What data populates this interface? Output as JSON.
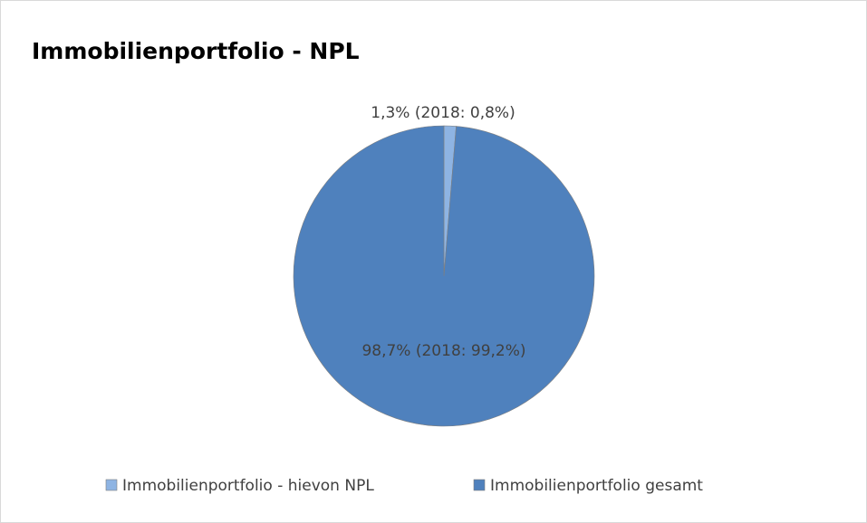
{
  "chart_data": {
    "type": "pie",
    "title": "Immobilienportfolio - NPL",
    "categories": [
      "Immobilienportfolio - hievon NPL",
      "Immobilienportfolio gesamt"
    ],
    "values": [
      1.3,
      98.7
    ],
    "value_labels": [
      "1,3% (2018: 0,8%)",
      "98,7% (2018: 99,2%)"
    ],
    "colors": [
      "#8eb4e3",
      "#4f81bd"
    ],
    "legend": "bottom"
  }
}
